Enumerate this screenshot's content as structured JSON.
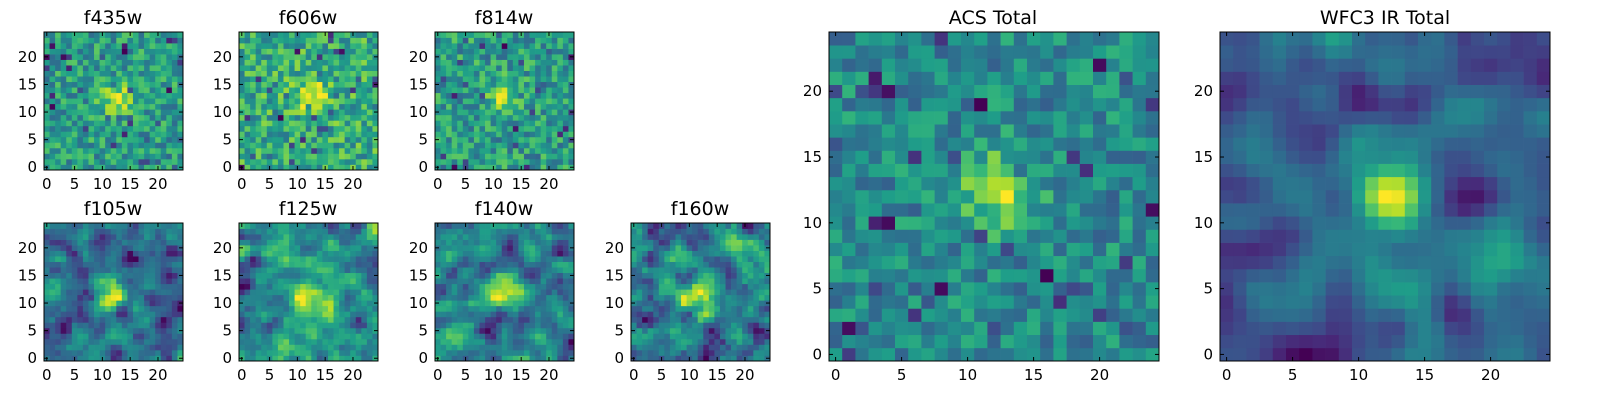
{
  "chart_data": [
    {
      "id": "f435w",
      "type": "heatmap",
      "title": "f435w",
      "grid": [
        25,
        25
      ],
      "seed": 435,
      "xlim": [
        -0.5,
        24.5
      ],
      "ylim": [
        -0.5,
        24.5
      ],
      "xticks": [
        0,
        5,
        10,
        15,
        20
      ],
      "yticks": [
        0,
        5,
        10,
        15,
        20
      ],
      "colormap": "viridis",
      "source_center": [
        12.5,
        12.5
      ],
      "source_strength": 0.45,
      "smoothness": 0
    },
    {
      "id": "f606w",
      "type": "heatmap",
      "title": "f606w",
      "grid": [
        25,
        25
      ],
      "seed": 606,
      "xlim": [
        -0.5,
        24.5
      ],
      "ylim": [
        -0.5,
        24.5
      ],
      "xticks": [
        0,
        5,
        10,
        15,
        20
      ],
      "yticks": [
        0,
        5,
        10,
        15,
        20
      ],
      "colormap": "viridis",
      "source_center": [
        12.5,
        13
      ],
      "source_strength": 0.4,
      "smoothness": 0
    },
    {
      "id": "f814w",
      "type": "heatmap",
      "title": "f814w",
      "grid": [
        25,
        25
      ],
      "seed": 814,
      "xlim": [
        -0.5,
        24.5
      ],
      "ylim": [
        -0.5,
        24.5
      ],
      "xticks": [
        0,
        5,
        10,
        15,
        20
      ],
      "yticks": [
        0,
        5,
        10,
        15,
        20
      ],
      "colormap": "viridis",
      "source_center": [
        12,
        12.5
      ],
      "source_strength": 0.35,
      "smoothness": 0
    },
    {
      "id": "f105w",
      "type": "heatmap",
      "title": "f105w",
      "grid": [
        25,
        25
      ],
      "seed": 105,
      "xlim": [
        -0.5,
        24.5
      ],
      "ylim": [
        -0.5,
        24.5
      ],
      "xticks": [
        0,
        5,
        10,
        15,
        20
      ],
      "yticks": [
        0,
        5,
        10,
        15,
        20
      ],
      "colormap": "viridis",
      "source_center": [
        11,
        12
      ],
      "source_strength": 0.55,
      "smoothness": 1
    },
    {
      "id": "f125w",
      "type": "heatmap",
      "title": "f125w",
      "grid": [
        25,
        25
      ],
      "seed": 125,
      "xlim": [
        -0.5,
        24.5
      ],
      "ylim": [
        -0.5,
        24.5
      ],
      "xticks": [
        0,
        5,
        10,
        15,
        20
      ],
      "yticks": [
        0,
        5,
        10,
        15,
        20
      ],
      "colormap": "viridis",
      "source_center": [
        11.5,
        11.5
      ],
      "source_strength": 0.45,
      "smoothness": 1
    },
    {
      "id": "f140w",
      "type": "heatmap",
      "title": "f140w",
      "grid": [
        25,
        25
      ],
      "seed": 140,
      "xlim": [
        -0.5,
        24.5
      ],
      "ylim": [
        -0.5,
        24.5
      ],
      "xticks": [
        0,
        5,
        10,
        15,
        20
      ],
      "yticks": [
        0,
        5,
        10,
        15,
        20
      ],
      "colormap": "viridis",
      "source_center": [
        12,
        12
      ],
      "source_strength": 0.45,
      "smoothness": 1
    },
    {
      "id": "f160w",
      "type": "heatmap",
      "title": "f160w",
      "grid": [
        25,
        25
      ],
      "seed": 160,
      "xlim": [
        -0.5,
        24.5
      ],
      "ylim": [
        -0.5,
        24.5
      ],
      "xticks": [
        0,
        5,
        10,
        15,
        20
      ],
      "yticks": [
        0,
        5,
        10,
        15,
        20
      ],
      "colormap": "viridis",
      "source_center": [
        12.5,
        11.5
      ],
      "source_strength": 0.5,
      "smoothness": 1
    },
    {
      "id": "acs-total",
      "type": "heatmap",
      "title": "ACS Total",
      "grid": [
        25,
        25
      ],
      "seed": 7,
      "xlim": [
        -0.5,
        24.5
      ],
      "ylim": [
        -0.5,
        24.5
      ],
      "xticks": [
        0,
        5,
        10,
        15,
        20
      ],
      "yticks": [
        0,
        5,
        10,
        15,
        20
      ],
      "colormap": "viridis",
      "source_center": [
        12.5,
        12.5
      ],
      "source_strength": 0.6,
      "smoothness": 0
    },
    {
      "id": "wfc3-ir-total",
      "type": "heatmap",
      "title": "WFC3 IR Total",
      "grid": [
        25,
        25
      ],
      "seed": 31,
      "xlim": [
        -0.5,
        24.5
      ],
      "ylim": [
        -0.5,
        24.5
      ],
      "xticks": [
        0,
        5,
        10,
        15,
        20
      ],
      "yticks": [
        0,
        5,
        10,
        15,
        20
      ],
      "colormap": "viridis",
      "source_center": [
        12,
        12
      ],
      "source_strength": 0.7,
      "smoothness": 2
    }
  ]
}
